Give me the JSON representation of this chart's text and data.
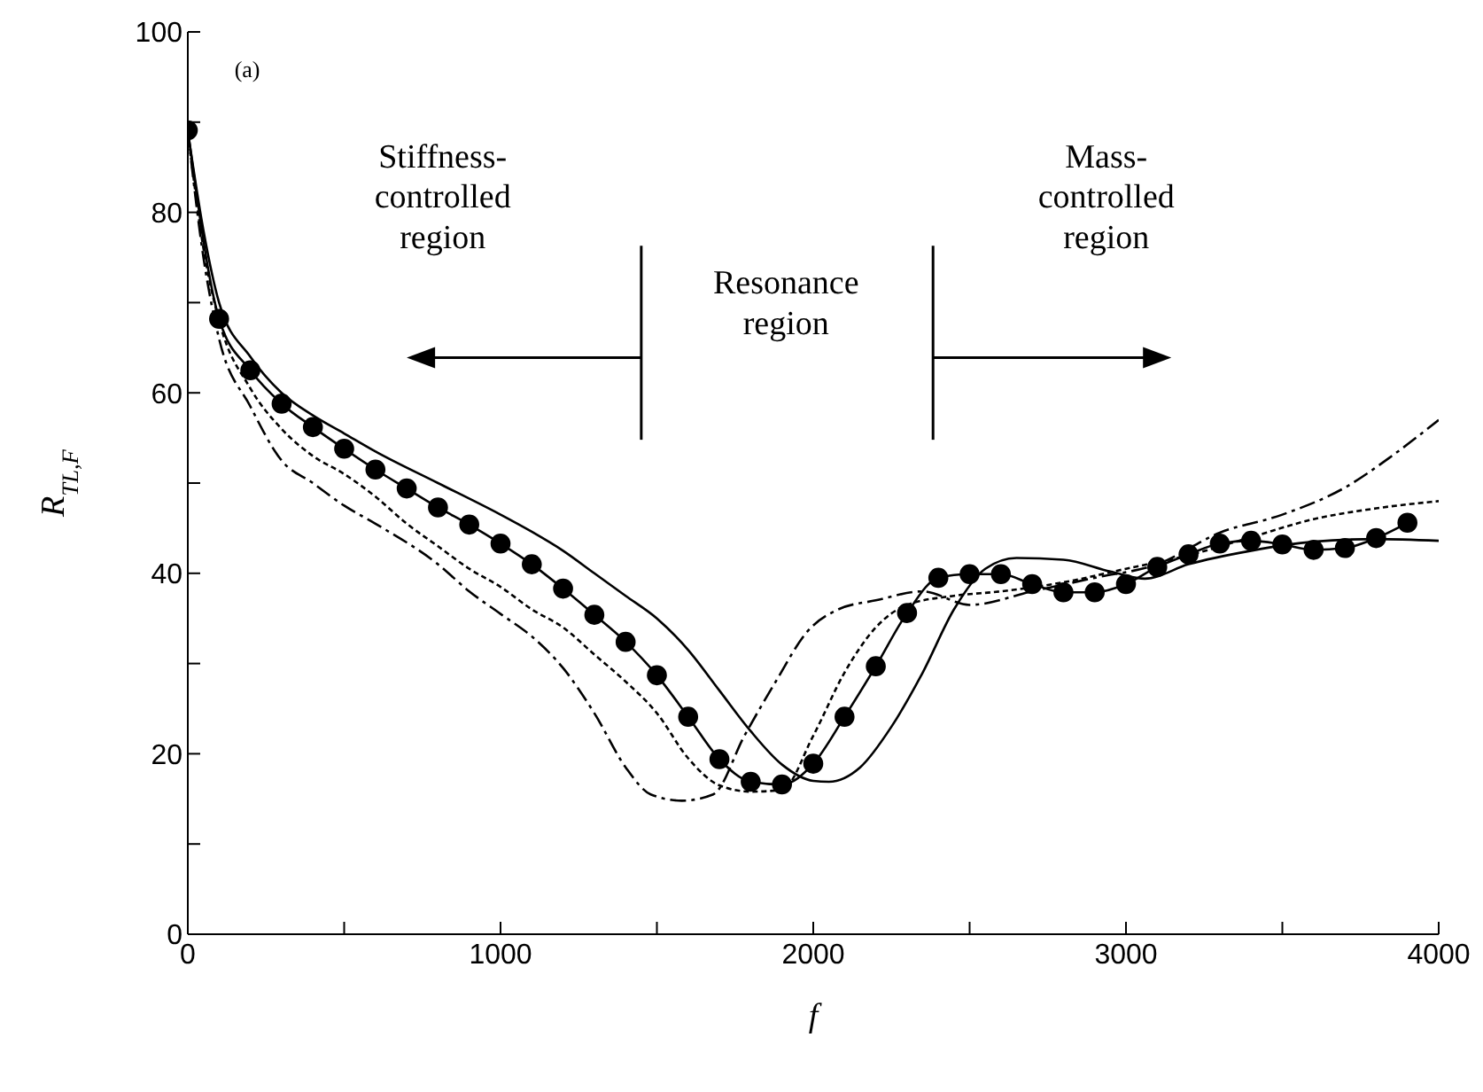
{
  "chart_data": {
    "type": "line",
    "xlabel": "f",
    "ylabel": "R$_{TL,F}$",
    "xlim": [
      0,
      4000
    ],
    "ylim": [
      0,
      100
    ],
    "xticks": [
      0,
      {
        "value": 500,
        "label": null
      },
      1000,
      {
        "value": 1500,
        "label": null
      },
      2000,
      {
        "value": 2500,
        "label": null
      },
      3000,
      {
        "value": 3500,
        "label": null
      },
      4000
    ],
    "yticks": [
      0,
      {
        "value": 10,
        "label": null
      },
      20,
      {
        "value": 30,
        "label": null
      },
      40,
      {
        "value": 50,
        "label": null
      },
      60,
      {
        "value": 70,
        "label": null
      },
      80,
      {
        "value": 90,
        "label": null
      },
      100
    ],
    "ref_lines": [
      {
        "axis": "x",
        "value": 1450
      },
      {
        "axis": "x",
        "value": 2383
      }
    ],
    "annotations": [
      "(a)",
      "Stiffness-controlled region",
      "Resonance region",
      "Mass-controlled region"
    ],
    "series": [
      {
        "color": "#000000",
        "line_style": "solid",
        "marker": "none",
        "x": [
          0,
          50,
          100,
          200,
          300,
          400,
          500,
          600,
          800,
          1000,
          1100,
          1200,
          1300,
          1400,
          1500,
          1600,
          1700,
          1800,
          1900,
          2000,
          2050,
          2150,
          2250,
          2350,
          2450,
          2550,
          2650,
          2800,
          2950,
          3060,
          3200,
          3400,
          3600,
          3800,
          4000
        ],
        "values": [
          89,
          78,
          70,
          64,
          60,
          57.5,
          55.5,
          53.5,
          50,
          46.5,
          44.6,
          42.5,
          40,
          37.5,
          35,
          31.5,
          27,
          22.5,
          18.8,
          17,
          16.9,
          18.5,
          23,
          29,
          36,
          40.5,
          41.7,
          41.5,
          40.2,
          39.4,
          41,
          42.5,
          43.5,
          43.8,
          43.6
        ]
      },
      {
        "color": "#000000",
        "line_style": "solid",
        "marker": "circle",
        "x": [
          0,
          100,
          200,
          300,
          400,
          500,
          600,
          700,
          800,
          900,
          1000,
          1100,
          1200,
          1300,
          1400,
          1500,
          1600,
          1700,
          1800,
          1900,
          2000,
          2100,
          2200,
          2300,
          2400,
          2500,
          2600,
          2700,
          2800,
          2900,
          3000,
          3100,
          3200,
          3300,
          3400,
          3500,
          3600,
          3700,
          3800,
          3900
        ],
        "values": [
          89.1,
          68.2,
          62.5,
          58.8,
          56.2,
          53.8,
          51.5,
          49.4,
          47.3,
          45.4,
          43.3,
          41,
          38.3,
          35.4,
          32.4,
          28.7,
          24.1,
          19.4,
          16.9,
          16.6,
          18.9,
          24.1,
          29.7,
          35.6,
          39.5,
          39.9,
          39.9,
          38.8,
          37.9,
          37.9,
          38.8,
          40.7,
          42.1,
          43.3,
          43.6,
          43.2,
          42.6,
          42.8,
          43.9,
          45.6
        ]
      },
      {
        "color": "#000000",
        "line_style": "dotted",
        "marker": "none",
        "x": [
          0,
          50,
          100,
          200,
          300,
          400,
          500,
          600,
          700,
          800,
          900,
          1000,
          1100,
          1200,
          1300,
          1400,
          1500,
          1600,
          1700,
          1800,
          1900,
          2000,
          2100,
          2200,
          2300,
          2450,
          2600,
          2800,
          3000,
          3200,
          3400,
          3600,
          3800,
          4000
        ],
        "values": [
          89,
          76,
          68,
          60.5,
          56,
          53,
          51,
          48.5,
          45.5,
          43,
          40.5,
          38.5,
          36,
          34,
          31,
          28,
          24.5,
          19.5,
          16.5,
          15.8,
          16,
          22,
          29,
          34,
          36.5,
          37.5,
          38,
          39,
          40.5,
          42,
          44,
          46,
          47.2,
          48
        ]
      },
      {
        "color": "#000000",
        "line_style": "dashed",
        "marker": "none",
        "x": [
          0,
          50,
          100,
          200,
          300,
          400,
          500,
          600,
          800,
          900,
          1000,
          1100,
          1200,
          1300,
          1400,
          1480,
          1580,
          1680,
          1780,
          1880,
          1980,
          2080,
          2200,
          2350,
          2500,
          2700,
          2900,
          3100,
          3300,
          3500,
          3700,
          3850,
          4000
        ],
        "values": [
          89,
          75,
          66,
          58.5,
          52.5,
          50,
          47.5,
          45.5,
          41,
          38,
          35.5,
          33,
          29.5,
          24.5,
          18.5,
          15.5,
          14.8,
          15.5,
          22,
          28,
          33.5,
          36,
          37,
          38,
          36.5,
          38,
          39.5,
          41,
          44.5,
          46.5,
          49.5,
          53,
          57
        ]
      }
    ]
  }
}
